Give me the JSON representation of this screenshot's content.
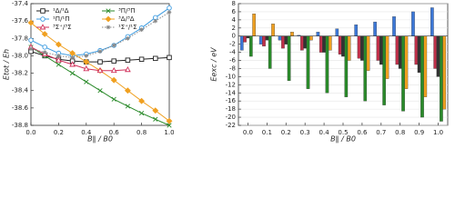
{
  "chart_data": [
    {
      "type": "line",
      "xlabel": "B∥ / B0",
      "ylabel": "Etot / Eh",
      "x": [
        0,
        0.1,
        0.2,
        0.3,
        0.4,
        0.5,
        0.6,
        0.7,
        0.8,
        0.9,
        1.0
      ],
      "xlim": [
        0,
        1
      ],
      "ylim": [
        -38.8,
        -37.4
      ],
      "xticks": [
        {
          "value": 0,
          "label": "0.0"
        },
        0.2,
        0.4,
        0.6,
        0.8,
        {
          "value": 1,
          "label": "1.0"
        }
      ],
      "yticks": [
        -37.4,
        -37.6,
        -37.8,
        {
          "value": -38,
          "label": "-38.0"
        },
        -38.2,
        -38.4,
        -38.6,
        -38.8
      ],
      "grid": false,
      "legend": "top",
      "series": [
        {
          "name": "¹Δ/¹Δ",
          "color": "#222222",
          "marker": "square",
          "values": [
            -37.95,
            -38.0,
            -38.04,
            -38.06,
            -38.07,
            -38.07,
            -38.06,
            -38.05,
            -38.04,
            -38.03,
            -38.02
          ]
        },
        {
          "name": "³Π/³Π",
          "color": "#2a8a2a",
          "marker": "x",
          "values": [
            -37.9,
            -38.0,
            -38.1,
            -38.2,
            -38.3,
            -38.4,
            -38.5,
            -38.58,
            -38.66,
            -38.73,
            -38.8
          ]
        },
        {
          "name": "¹Π/¹Π",
          "color": "#3c9be0",
          "marker": "circle",
          "values": [
            -37.82,
            -37.9,
            -37.97,
            -38.0,
            -37.98,
            -37.94,
            -37.88,
            -37.78,
            -37.68,
            -37.56,
            -37.45
          ]
        },
        {
          "name": "³Δ/³Δ",
          "color": "#f0a020",
          "marker": "diamond",
          "values": [
            -37.62,
            -37.75,
            -37.87,
            -37.97,
            -38.07,
            -38.17,
            -38.28,
            -38.4,
            -38.52,
            -38.63,
            -38.75
          ]
        },
        {
          "name": "³Σ⁺/³Σ",
          "color": "#d0305a",
          "marker": "triangle",
          "values": [
            -37.9,
            -37.98,
            -38.05,
            -38.1,
            -38.15,
            -38.17,
            -38.17,
            -38.16,
            null,
            null,
            null
          ]
        },
        {
          "name": "¹Σ⁺/¹Σ",
          "color": "#888888",
          "marker": "star",
          "dashed": true,
          "values": [
            -37.92,
            -37.96,
            -38.0,
            -38.02,
            -38.0,
            -37.95,
            -37.88,
            -37.8,
            -37.7,
            -37.6,
            -37.5
          ]
        }
      ]
    },
    {
      "type": "bar",
      "xlabel": "B∥ / B0",
      "ylabel": "Eexc / eV",
      "categories": [
        "0.0",
        "0.1",
        "0.2",
        "0.3",
        "0.4",
        "0.5",
        "0.6",
        "0.7",
        "0.8",
        "0.9",
        "1.0"
      ],
      "ylim": [
        -22,
        8
      ],
      "yticks": [
        8,
        6,
        4,
        2,
        0,
        -2,
        -4,
        -6,
        -8,
        -10,
        -12,
        -14,
        -16,
        -18,
        -20,
        -22
      ],
      "grid": true,
      "series": [
        {
          "color": "#3c78d8",
          "values": [
            -3.5,
            -2,
            -1,
            0.2,
            1,
            1.8,
            2.8,
            3.5,
            4.8,
            6,
            7
          ]
        },
        {
          "color": "#c0304a",
          "values": [
            -1.5,
            -2.5,
            -3,
            -3.5,
            -4,
            -4.5,
            -5.5,
            -6,
            -7,
            -7,
            -8
          ]
        },
        {
          "color": "#333333",
          "values": [
            -0.5,
            -1,
            -2,
            -3,
            -4,
            -5,
            -6,
            -7,
            -8,
            -9,
            -10
          ]
        },
        {
          "color": "#2a8a2a",
          "values": [
            -5,
            -8,
            -11,
            -13,
            -14,
            -15,
            -16,
            -17,
            -18.5,
            -20,
            -21
          ]
        },
        {
          "color": "#f0a020",
          "values": [
            5.5,
            3,
            1,
            -1,
            -3.5,
            -6,
            -8.5,
            -10.5,
            -13,
            -15,
            -18
          ]
        }
      ]
    }
  ]
}
